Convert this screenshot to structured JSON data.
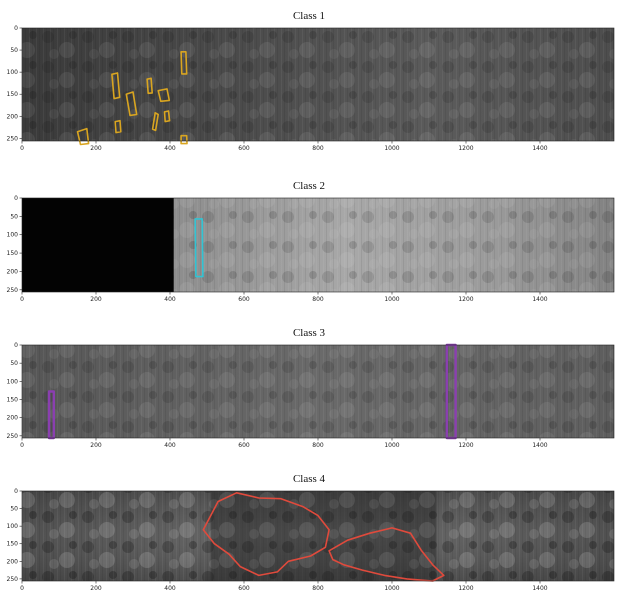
{
  "chart_data": [
    {
      "type": "heatmap",
      "title": "Class 1",
      "xticks": [
        0,
        200,
        400,
        600,
        800,
        1000,
        1200,
        1400
      ],
      "yticks": [
        0,
        50,
        100,
        150,
        200,
        250
      ],
      "xlim": [
        0,
        1600
      ],
      "ylim": [
        256,
        0
      ],
      "overlay_color": "#d9a520",
      "defect_regions": [
        {
          "polygon": [
            [
              150,
              235
            ],
            [
              175,
              228
            ],
            [
              180,
              262
            ],
            [
              158,
              264
            ]
          ]
        },
        {
          "polygon": [
            [
              243,
              105
            ],
            [
              258,
              102
            ],
            [
              264,
              157
            ],
            [
              249,
              160
            ]
          ]
        },
        {
          "polygon": [
            [
              252,
              212
            ],
            [
              265,
              210
            ],
            [
              267,
              235
            ],
            [
              254,
              237
            ]
          ]
        },
        {
          "polygon": [
            [
              282,
              150
            ],
            [
              300,
              145
            ],
            [
              310,
              196
            ],
            [
              292,
              198
            ]
          ]
        },
        {
          "polygon": [
            [
              338,
              116
            ],
            [
              349,
              114
            ],
            [
              352,
              147
            ],
            [
              341,
              148
            ]
          ]
        },
        {
          "polygon": [
            [
              360,
              192
            ],
            [
              368,
              196
            ],
            [
              361,
              232
            ],
            [
              353,
              229
            ]
          ]
        },
        {
          "polygon": [
            [
              368,
              142
            ],
            [
              392,
              138
            ],
            [
              398,
              164
            ],
            [
              375,
              166
            ]
          ]
        },
        {
          "polygon": [
            [
              385,
              190
            ],
            [
              396,
              188
            ],
            [
              399,
              210
            ],
            [
              387,
              212
            ]
          ]
        },
        {
          "polygon": [
            [
              430,
              54
            ],
            [
              443,
              54
            ],
            [
              445,
              104
            ],
            [
              432,
              104
            ]
          ]
        },
        {
          "polygon": [
            [
              430,
              244
            ],
            [
              445,
              244
            ],
            [
              446,
              262
            ],
            [
              430,
              262
            ]
          ]
        }
      ]
    },
    {
      "type": "heatmap",
      "title": "Class 2",
      "xticks": [
        0,
        200,
        400,
        600,
        800,
        1000,
        1200,
        1400
      ],
      "yticks": [
        0,
        50,
        100,
        150,
        200,
        250
      ],
      "xlim": [
        0,
        1600
      ],
      "ylim": [
        256,
        0
      ],
      "overlay_color": "#31c4d4",
      "defect_regions": [
        {
          "polygon": [
            [
              468,
              57
            ],
            [
              487,
              57
            ],
            [
              489,
              214
            ],
            [
              470,
              214
            ]
          ]
        }
      ]
    },
    {
      "type": "heatmap",
      "title": "Class 3",
      "xticks": [
        0,
        200,
        400,
        600,
        800,
        1000,
        1200,
        1400
      ],
      "yticks": [
        0,
        50,
        100,
        150,
        200,
        250
      ],
      "xlim": [
        0,
        1600
      ],
      "ylim": [
        256,
        0
      ],
      "overlay_color": "#8a3fb0",
      "defect_regions": [
        {
          "polygon": [
            [
              73,
              128
            ],
            [
              86,
              128
            ],
            [
              86,
              256
            ],
            [
              73,
              256
            ]
          ]
        },
        {
          "polygon": [
            [
              1148,
              0
            ],
            [
              1172,
              0
            ],
            [
              1172,
              256
            ],
            [
              1148,
              256
            ]
          ]
        }
      ]
    },
    {
      "type": "heatmap",
      "title": "Class 4",
      "xticks": [
        0,
        200,
        400,
        600,
        800,
        1000,
        1200,
        1400
      ],
      "yticks": [
        0,
        50,
        100,
        150,
        200,
        250
      ],
      "xlim": [
        0,
        1600
      ],
      "ylim": [
        256,
        0
      ],
      "overlay_color": "#e04a3c",
      "defect_regions": [
        {
          "polygon": [
            [
              530,
              30
            ],
            [
              580,
              5
            ],
            [
              640,
              20
            ],
            [
              700,
              22
            ],
            [
              760,
              45
            ],
            [
              800,
              70
            ],
            [
              830,
              110
            ],
            [
              820,
              160
            ],
            [
              780,
              185
            ],
            [
              720,
              200
            ],
            [
              690,
              230
            ],
            [
              640,
              240
            ],
            [
              590,
              215
            ],
            [
              560,
              180
            ],
            [
              520,
              150
            ],
            [
              490,
              110
            ],
            [
              510,
              70
            ]
          ]
        },
        {
          "polygon": [
            [
              830,
              170
            ],
            [
              880,
              140
            ],
            [
              940,
              120
            ],
            [
              1000,
              105
            ],
            [
              1050,
              120
            ],
            [
              1080,
              170
            ],
            [
              1110,
              210
            ],
            [
              1140,
              240
            ],
            [
              1110,
              256
            ],
            [
              1040,
              250
            ],
            [
              980,
              240
            ],
            [
              920,
              225
            ],
            [
              870,
              210
            ],
            [
              840,
              195
            ]
          ]
        }
      ]
    }
  ]
}
